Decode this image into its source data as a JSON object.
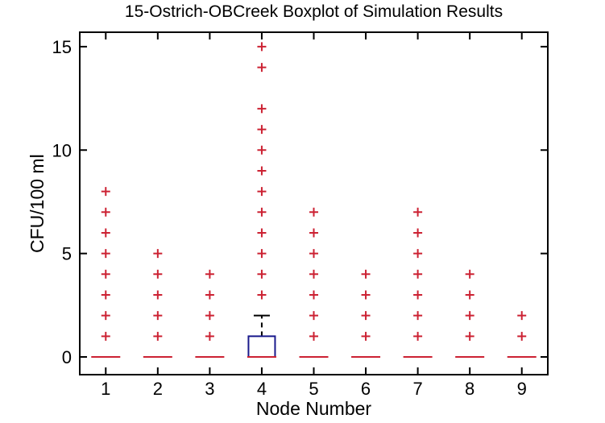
{
  "chart_data": {
    "type": "boxplot",
    "title": "15-Ostrich-OBCreek Boxplot of Simulation Results",
    "xlabel": "Node Number",
    "ylabel": "CFU/100 ml",
    "categories": [
      1,
      2,
      3,
      4,
      5,
      6,
      7,
      8,
      9
    ],
    "y_ticks": [
      0,
      5,
      10,
      15
    ],
    "ylim": [
      -0.9,
      15.75
    ],
    "grid": false,
    "legend": false,
    "boxes": [
      {
        "node": 1,
        "median": 0,
        "q1": 0,
        "q3": 0,
        "whisker_low": 0,
        "whisker_high": 0,
        "outliers": [
          1,
          2,
          3,
          4,
          5,
          6,
          7,
          8
        ]
      },
      {
        "node": 2,
        "median": 0,
        "q1": 0,
        "q3": 0,
        "whisker_low": 0,
        "whisker_high": 0,
        "outliers": [
          1,
          2,
          3,
          4,
          5
        ]
      },
      {
        "node": 3,
        "median": 0,
        "q1": 0,
        "q3": 0,
        "whisker_low": 0,
        "whisker_high": 0,
        "outliers": [
          1,
          2,
          3,
          4
        ]
      },
      {
        "node": 4,
        "median": 0,
        "q1": 0,
        "q3": 1,
        "whisker_low": 0,
        "whisker_high": 2,
        "outliers": [
          3,
          4,
          5,
          6,
          7,
          8,
          9,
          10,
          11,
          12,
          14,
          15
        ]
      },
      {
        "node": 5,
        "median": 0,
        "q1": 0,
        "q3": 0,
        "whisker_low": 0,
        "whisker_high": 0,
        "outliers": [
          1,
          2,
          3,
          4,
          5,
          6,
          7
        ]
      },
      {
        "node": 6,
        "median": 0,
        "q1": 0,
        "q3": 0,
        "whisker_low": 0,
        "whisker_high": 0,
        "outliers": [
          1,
          2,
          3,
          4
        ]
      },
      {
        "node": 7,
        "median": 0,
        "q1": 0,
        "q3": 0,
        "whisker_low": 0,
        "whisker_high": 0,
        "outliers": [
          1,
          2,
          3,
          4,
          5,
          6,
          7
        ]
      },
      {
        "node": 8,
        "median": 0,
        "q1": 0,
        "q3": 0,
        "whisker_low": 0,
        "whisker_high": 0,
        "outliers": [
          1,
          2,
          3,
          4
        ]
      },
      {
        "node": 9,
        "median": 0,
        "q1": 0,
        "q3": 0,
        "whisker_low": 0,
        "whisker_high": 0,
        "outliers": [
          1,
          2
        ]
      }
    ],
    "colors": {
      "box": "#1a1a8c",
      "median": "#cc2233",
      "outlier": "#cc2233",
      "whisker": "#000000",
      "axis": "#000000",
      "background": "#ffffff"
    }
  }
}
